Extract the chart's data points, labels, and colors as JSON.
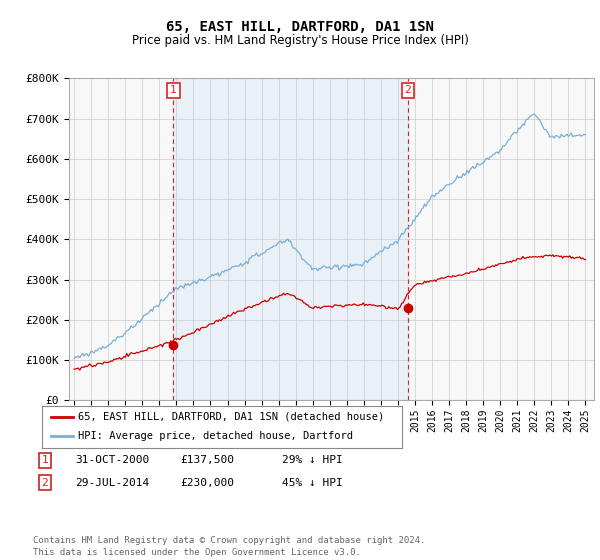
{
  "title": "65, EAST HILL, DARTFORD, DA1 1SN",
  "subtitle": "Price paid vs. HM Land Registry's House Price Index (HPI)",
  "ylim": [
    0,
    800000
  ],
  "yticks": [
    0,
    100000,
    200000,
    300000,
    400000,
    500000,
    600000,
    700000,
    800000
  ],
  "ytick_labels": [
    "£0",
    "£100K",
    "£200K",
    "£300K",
    "£400K",
    "£500K",
    "£600K",
    "£700K",
    "£800K"
  ],
  "hpi_color": "#7aaed6",
  "hpi_fill_color": "#ddeeff",
  "price_color": "#cc0000",
  "vline_color": "#dd2222",
  "background_color": "#f8f8f8",
  "grid_color": "#cccccc",
  "transaction1_date": 2000.83,
  "transaction1_price": 137500,
  "transaction2_date": 2014.58,
  "transaction2_price": 230000,
  "legend_line1": "65, EAST HILL, DARTFORD, DA1 1SN (detached house)",
  "legend_line2": "HPI: Average price, detached house, Dartford",
  "note1_num": "1",
  "note1_date": "31-OCT-2000",
  "note1_price": "£137,500",
  "note1_hpi": "29% ↓ HPI",
  "note2_num": "2",
  "note2_date": "29-JUL-2014",
  "note2_price": "£230,000",
  "note2_hpi": "45% ↓ HPI",
  "footer": "Contains HM Land Registry data © Crown copyright and database right 2024.\nThis data is licensed under the Open Government Licence v3.0."
}
